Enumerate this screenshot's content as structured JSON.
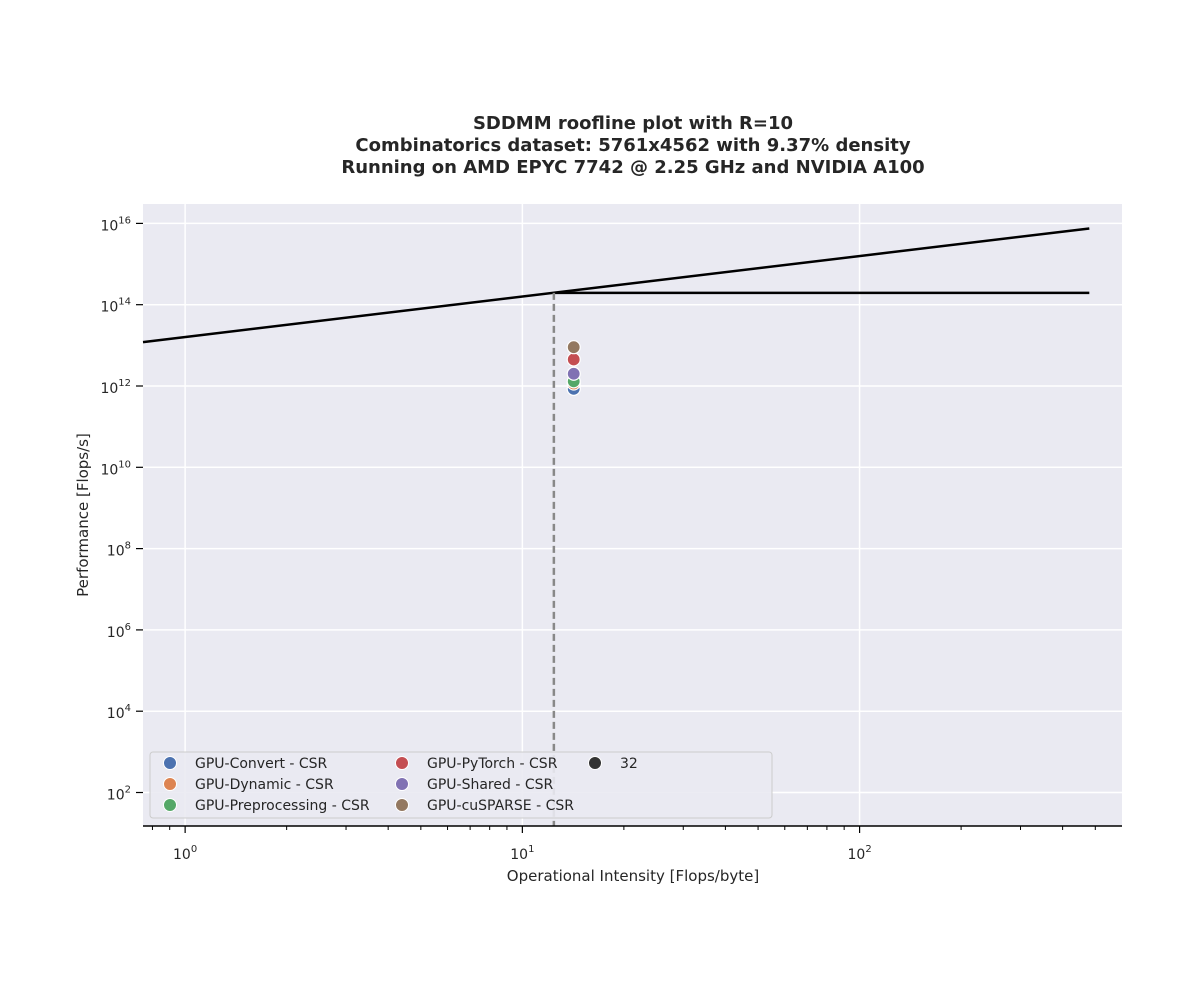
{
  "chart_data": {
    "type": "scatter",
    "title_lines": [
      "SDDMM roofline plot with R=10",
      "Combinatorics dataset: 5761x4562 with 9.37% density",
      "Running on AMD EPYC 7742 @ 2.25 GHz and NVIDIA A100"
    ],
    "xlabel": "Operational Intensity [Flops/byte]",
    "ylabel": "Performance [Flops/s]",
    "xscale": "log",
    "yscale": "log",
    "xlim": [
      0.75,
      600
    ],
    "ylim": [
      15,
      30000000000000000
    ],
    "grid": true,
    "x_ticks": [
      {
        "value": 1,
        "base": "10",
        "exp": "0"
      },
      {
        "value": 10,
        "base": "10",
        "exp": "1"
      },
      {
        "value": 100,
        "base": "10",
        "exp": "2"
      }
    ],
    "y_ticks": [
      {
        "value": 100,
        "base": "10",
        "exp": "2"
      },
      {
        "value": 10000,
        "base": "10",
        "exp": "4"
      },
      {
        "value": 1000000,
        "base": "10",
        "exp": "6"
      },
      {
        "value": 100000000,
        "base": "10",
        "exp": "8"
      },
      {
        "value": 10000000000,
        "base": "10",
        "exp": "10"
      },
      {
        "value": 1000000000000,
        "base": "10",
        "exp": "12"
      },
      {
        "value": 100000000000000,
        "base": "10",
        "exp": "14"
      },
      {
        "value": 10000000000000000,
        "base": "10",
        "exp": "16"
      }
    ],
    "roofline": {
      "memory_line": {
        "x": [
          0.75,
          480
        ],
        "y": [
          12000000000000,
          7500000000000000
        ]
      },
      "compute_line": {
        "x": [
          12.4,
          480
        ],
        "y": [
          195000000000000,
          195000000000000
        ]
      },
      "ridge_x": 12.4
    },
    "series": [
      {
        "name": "GPU-Convert - CSR",
        "color": "#4c72b0",
        "x": [
          14.2
        ],
        "y": [
          850000000000
        ]
      },
      {
        "name": "GPU-Dynamic - CSR",
        "color": "#dd8452",
        "x": [
          14.2
        ],
        "y": [
          1150000000000
        ]
      },
      {
        "name": "GPU-Preprocessing - CSR",
        "color": "#55a868",
        "x": [
          14.2
        ],
        "y": [
          1300000000000
        ]
      },
      {
        "name": "GPU-PyTorch - CSR",
        "color": "#c44e52",
        "x": [
          14.2
        ],
        "y": [
          4500000000000
        ]
      },
      {
        "name": "GPU-Shared - CSR",
        "color": "#8172b3",
        "x": [
          14.2
        ],
        "y": [
          2000000000000
        ]
      },
      {
        "name": "GPU-cuSPARSE - CSR",
        "color": "#937860",
        "x": [
          14.2
        ],
        "y": [
          9000000000000
        ]
      }
    ],
    "legend_entries": [
      {
        "name": "GPU-Convert - CSR",
        "color": "#4c72b0"
      },
      {
        "name": "GPU-Dynamic - CSR",
        "color": "#dd8452"
      },
      {
        "name": "GPU-Preprocessing - CSR",
        "color": "#55a868"
      },
      {
        "name": "GPU-PyTorch - CSR",
        "color": "#c44e52"
      },
      {
        "name": "GPU-Shared - CSR",
        "color": "#8172b3"
      },
      {
        "name": "GPU-cuSPARSE - CSR",
        "color": "#937860"
      },
      {
        "name": "32",
        "color": "#333333"
      }
    ],
    "legend_placement": "lower-left",
    "colors": {
      "plot_background": "#eaeaf2",
      "grid": "#ffffff",
      "roofline": "#000000",
      "ridge_marker": "#888888"
    }
  }
}
